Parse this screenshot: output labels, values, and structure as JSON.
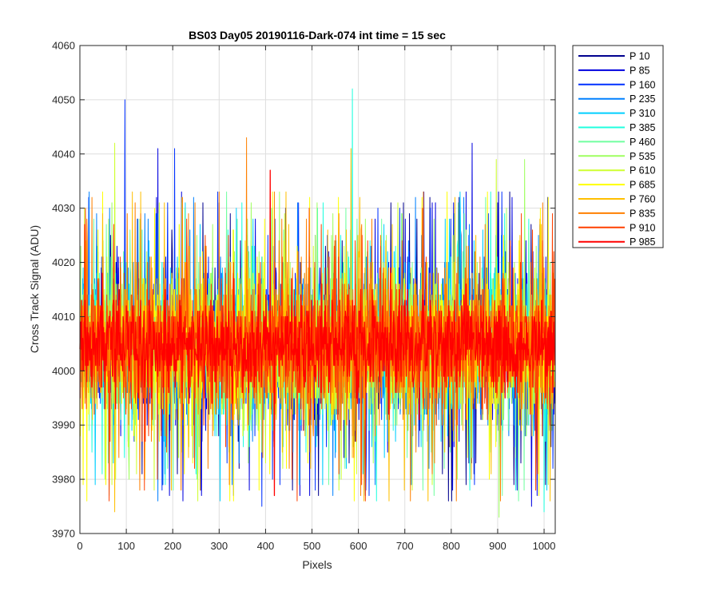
{
  "chart_data": {
    "type": "line",
    "title": "BS03 Day05 20190116-Dark-074 int time = 15 sec",
    "xlabel": "Pixels",
    "ylabel": "Cross Track Signal (ADU)",
    "xlim": [
      0,
      1024
    ],
    "ylim": [
      3970,
      4060
    ],
    "x_ticks": [
      0,
      100,
      200,
      300,
      400,
      500,
      600,
      700,
      800,
      900,
      1000
    ],
    "y_ticks": [
      3970,
      3980,
      3990,
      4000,
      4010,
      4020,
      4030,
      4040,
      4050,
      4060
    ],
    "grid": true,
    "legend_position": "outside-right-top",
    "x_points": 1024,
    "noise": {
      "mean": 4004.5,
      "core_std": 6,
      "core_clip": [
        3991,
        4021
      ],
      "spike_max": 4052,
      "spike_min": 3973
    },
    "spikes": [
      {
        "x": 97,
        "y": 4050,
        "series": "P 160"
      },
      {
        "x": 587,
        "y": 4052,
        "series": "P 385"
      },
      {
        "x": 75,
        "y": 4042,
        "series": "P 610"
      },
      {
        "x": 168,
        "y": 4041,
        "series": "P 85"
      },
      {
        "x": 204,
        "y": 4041,
        "series": "P 160"
      },
      {
        "x": 359,
        "y": 4043,
        "series": "P 835"
      },
      {
        "x": 845,
        "y": 4042,
        "series": "P 85"
      },
      {
        "x": 897,
        "y": 4039,
        "series": "P 610"
      },
      {
        "x": 958,
        "y": 4039,
        "series": "P 535"
      },
      {
        "x": 584,
        "y": 4041,
        "series": "P 760"
      },
      {
        "x": 410,
        "y": 4037,
        "series": "P 985"
      },
      {
        "x": 507,
        "y": 3978,
        "series": "P 160"
      },
      {
        "x": 392,
        "y": 3975,
        "series": "P 160"
      },
      {
        "x": 168,
        "y": 3976,
        "series": "P 235"
      },
      {
        "x": 75,
        "y": 3974,
        "series": "P 760"
      },
      {
        "x": 639,
        "y": 3976,
        "series": "P 385"
      },
      {
        "x": 903,
        "y": 3973,
        "series": "P 535"
      },
      {
        "x": 1000,
        "y": 3974,
        "series": "P 385"
      },
      {
        "x": 419,
        "y": 3977,
        "series": "P 985"
      },
      {
        "x": 973,
        "y": 3975,
        "series": "P 85"
      }
    ],
    "series": [
      {
        "name": "P 10",
        "color": "#00008f"
      },
      {
        "name": "P 85",
        "color": "#0000df"
      },
      {
        "name": "P 160",
        "color": "#0030ff"
      },
      {
        "name": "P 235",
        "color": "#0080ff"
      },
      {
        "name": "P 310",
        "color": "#00cfff"
      },
      {
        "name": "P 385",
        "color": "#20ffdf"
      },
      {
        "name": "P 460",
        "color": "#70ffa0"
      },
      {
        "name": "P 535",
        "color": "#9fff60"
      },
      {
        "name": "P 610",
        "color": "#cfff30"
      },
      {
        "name": "P 685",
        "color": "#ffff00"
      },
      {
        "name": "P 760",
        "color": "#ffbf00"
      },
      {
        "name": "P 835",
        "color": "#ff8000"
      },
      {
        "name": "P 910",
        "color": "#ff4000"
      },
      {
        "name": "P 985",
        "color": "#ff0000"
      }
    ]
  }
}
